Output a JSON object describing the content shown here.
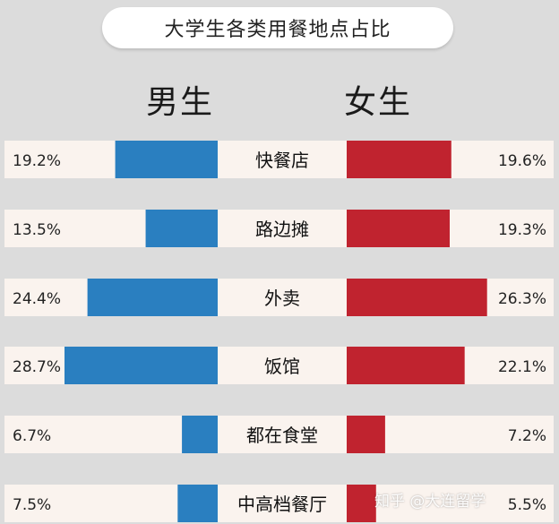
{
  "chart_data": {
    "type": "bar",
    "title": "大学生各类用餐地点占比",
    "categories": [
      "快餐店",
      "路边摊",
      "外卖",
      "饭馆",
      "都在食堂",
      "中高档餐厅"
    ],
    "series": [
      {
        "name": "男生",
        "values": [
          19.2,
          13.5,
          24.4,
          28.7,
          6.7,
          7.5
        ],
        "labels": [
          "19.2%",
          "13.5%",
          "24.4%",
          "28.7%",
          "6.7%",
          "7.5%"
        ],
        "color": "#2a7fc0"
      },
      {
        "name": "女生",
        "values": [
          19.6,
          19.3,
          26.3,
          22.1,
          7.2,
          5.5
        ],
        "labels": [
          "19.6%",
          "19.3%",
          "26.3%",
          "22.1%",
          "7.2%",
          "5.5%"
        ],
        "color": "#c0232f"
      }
    ],
    "orientation": "horizontal",
    "layout": "butterfly"
  },
  "watermark": "知乎 @大连留学"
}
